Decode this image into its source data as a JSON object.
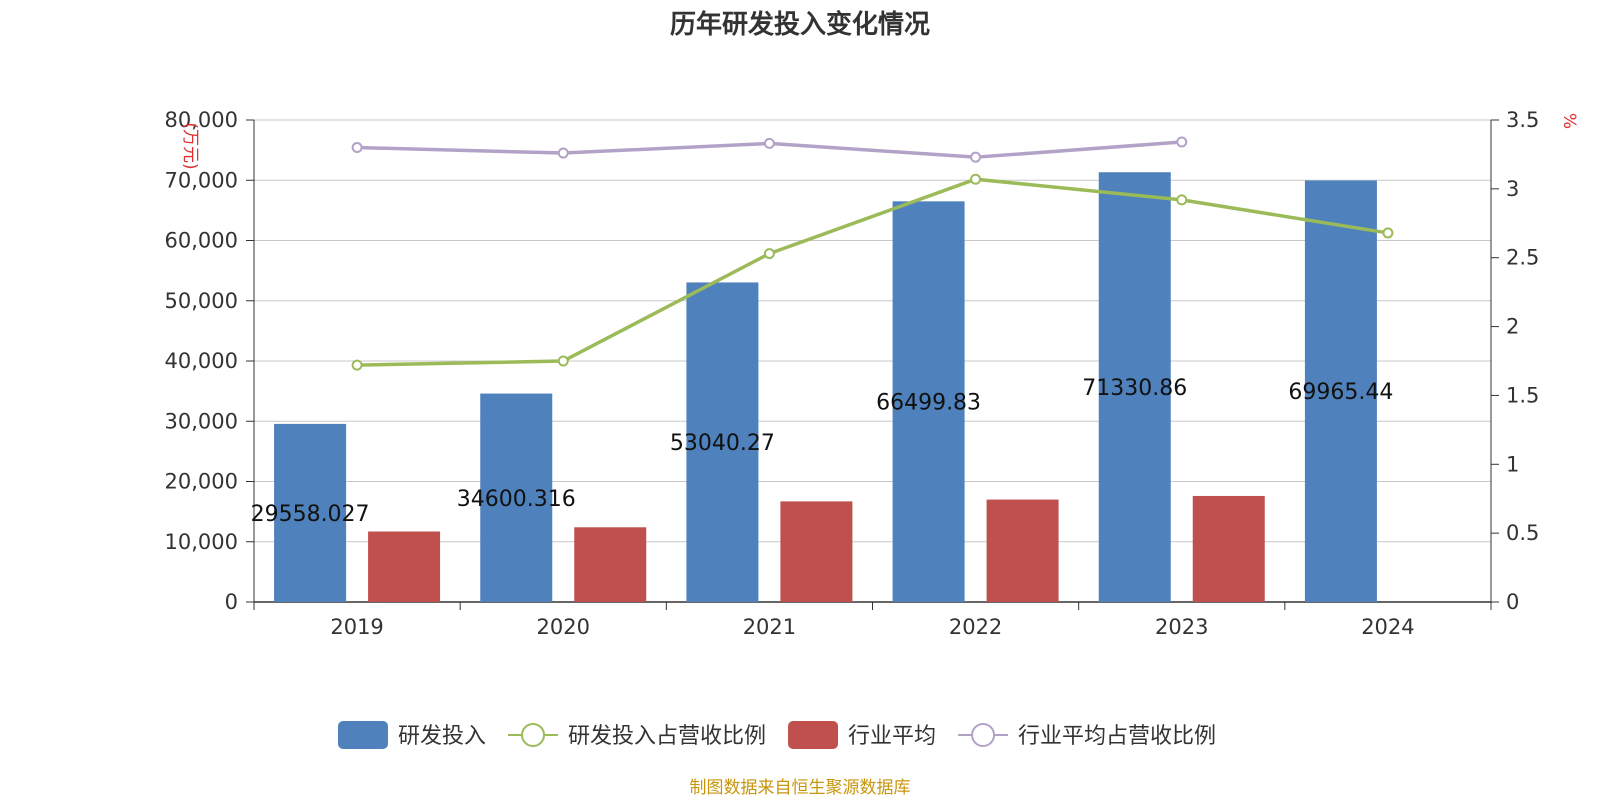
{
  "chart_data": {
    "type": "bar",
    "title": "历年研发投入变化情况",
    "categories": [
      "2019",
      "2020",
      "2021",
      "2022",
      "2023",
      "2024"
    ],
    "y_left": {
      "unit": "(万元)",
      "ylim": [
        0,
        80000
      ],
      "ticks": [
        "0",
        "10,000",
        "20,000",
        "30,000",
        "40,000",
        "50,000",
        "60,000",
        "70,000",
        "80,000"
      ]
    },
    "y_right": {
      "unit": "%",
      "ylim": [
        0,
        3.5
      ],
      "ticks": [
        "0",
        "0.5",
        "1",
        "1.5",
        "2",
        "2.5",
        "3",
        "3.5"
      ]
    },
    "series": [
      {
        "name": "研发投入",
        "type": "bar",
        "axis": "left",
        "color": "#4f81bd",
        "values": [
          29558.027,
          34600.316,
          53040.27,
          66499.83,
          71330.86,
          69965.44
        ],
        "labels": [
          "29558.027",
          "34600.316",
          "53040.27",
          "66499.83",
          "71330.86",
          "69965.44"
        ]
      },
      {
        "name": "行业平均",
        "type": "bar",
        "axis": "left",
        "color": "#c0504d",
        "values": [
          11700,
          12400,
          16700,
          17000,
          17600,
          null
        ]
      },
      {
        "name": "研发投入占营收比例",
        "type": "line",
        "axis": "right",
        "color": "#9bbb59",
        "values": [
          1.72,
          1.75,
          2.53,
          3.07,
          2.92,
          2.68
        ]
      },
      {
        "name": "行业平均占营收比例",
        "type": "line",
        "axis": "right",
        "color": "#b3a2c7",
        "values": [
          3.3,
          3.26,
          3.33,
          3.23,
          3.34,
          null
        ]
      }
    ],
    "grid": true,
    "legend": "bottom-center"
  },
  "source": "制图数据来自恒生聚源数据库"
}
